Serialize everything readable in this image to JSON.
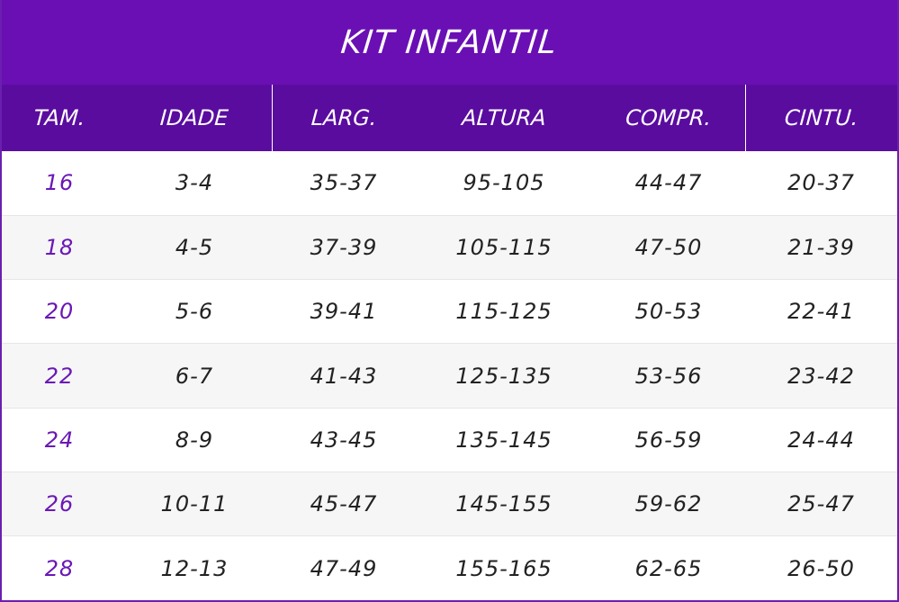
{
  "title": "KIT INFANTIL",
  "columns": [
    "TAM.",
    "IDADE",
    "LARG.",
    "ALTURA",
    "COMPR.",
    "CINTU."
  ],
  "rows": [
    [
      "16",
      "3-4",
      "35-37",
      "95-105",
      "44-47",
      "20-37"
    ],
    [
      "18",
      "4-5",
      "37-39",
      "105-115",
      "47-50",
      "21-39"
    ],
    [
      "20",
      "5-6",
      "39-41",
      "115-125",
      "50-53",
      "22-41"
    ],
    [
      "22",
      "6-7",
      "41-43",
      "125-135",
      "53-56",
      "23-42"
    ],
    [
      "24",
      "8-9",
      "43-45",
      "135-145",
      "56-59",
      "24-44"
    ],
    [
      "26",
      "10-11",
      "45-47",
      "145-155",
      "59-62",
      "25-47"
    ],
    [
      "28",
      "12-13",
      "47-49",
      "155-165",
      "62-65",
      "26-50"
    ]
  ],
  "colors": {
    "title_bg": "#6a0fb4",
    "header_bg": "#5a0c9f",
    "size_text": "#6a18b6",
    "stripe": "#f6f6f6"
  }
}
